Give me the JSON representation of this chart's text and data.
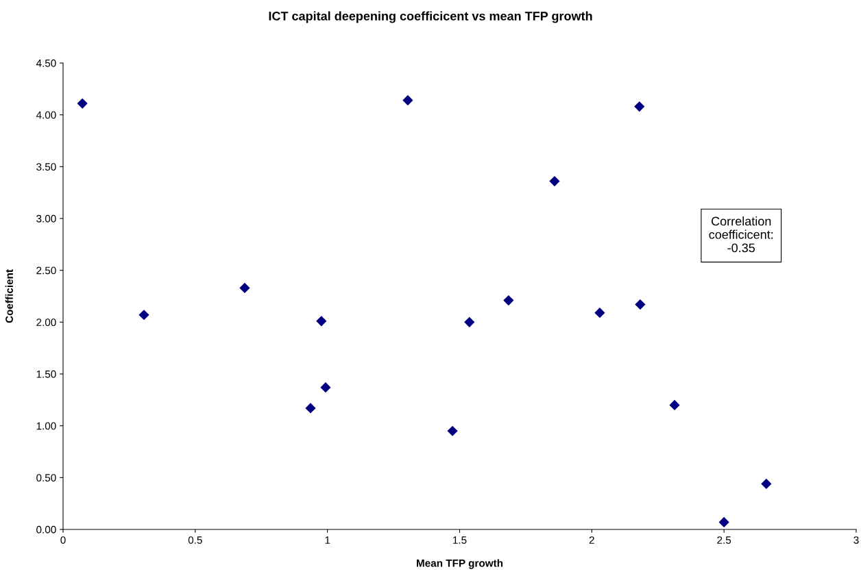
{
  "chart_data": {
    "type": "scatter",
    "title": "ICT capital deepening coefficicent vs mean TFP growth",
    "xlabel": "Mean TFP growth",
    "ylabel": "Coefficient",
    "x": [
      0.073,
      0.306,
      0.687,
      0.936,
      0.977,
      0.993,
      1.304,
      1.473,
      1.537,
      1.685,
      1.859,
      2.03,
      2.18,
      2.183,
      2.313,
      2.5,
      2.66
    ],
    "values": [
      4.11,
      2.07,
      2.33,
      1.17,
      2.01,
      1.37,
      4.14,
      0.95,
      2.0,
      2.21,
      3.36,
      2.09,
      4.08,
      2.17,
      1.2,
      0.07,
      0.44
    ],
    "color": "#000080",
    "marker": "diamond",
    "xlim": [
      0,
      3
    ],
    "xticks": [
      0,
      0.5,
      1,
      1.5,
      2,
      2.5,
      3
    ],
    "ylim": [
      0,
      4.5
    ],
    "yticks": [
      {
        "value": 0,
        "label": "0.00"
      },
      {
        "value": 0.5,
        "label": "0.50"
      },
      {
        "value": 1,
        "label": "1.00"
      },
      {
        "value": 1.5,
        "label": "1.50"
      },
      {
        "value": 2,
        "label": "2.00"
      },
      {
        "value": 2.5,
        "label": "2.50"
      },
      {
        "value": 3,
        "label": "3.00"
      },
      {
        "value": 3.5,
        "label": "3.50"
      },
      {
        "value": 4,
        "label": "4.00"
      },
      {
        "value": 4.5,
        "label": "4.50"
      }
    ],
    "grid": false,
    "annotations": [
      "Correlation\ncoefficicent:\n-0.35"
    ]
  }
}
